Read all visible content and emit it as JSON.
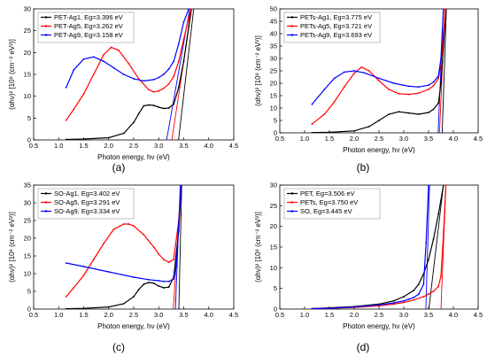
{
  "chart_data": [
    {
      "type": "line",
      "panel_label": "(a)",
      "xlabel": "Photon energy, hν (eV)",
      "ylabel": "(αhν)² [10⁸ (cm⁻² eV²)]",
      "xlim": [
        0.5,
        4.5
      ],
      "ylim": [
        0,
        30
      ],
      "xticks": [
        "0.5",
        "1.0",
        "1.5",
        "2.0",
        "2.5",
        "3.0",
        "3.5",
        "4.0",
        "4.5"
      ],
      "yticks": [
        "0",
        "5",
        "10",
        "15",
        "20",
        "25",
        "30"
      ],
      "legend_position": "top-left",
      "series": [
        {
          "name": "PET-Ag1, Eg=3.396 eV",
          "color": "#000000",
          "x": [
            1.15,
            1.5,
            2.0,
            2.3,
            2.5,
            2.6,
            2.7,
            2.8,
            2.9,
            3.0,
            3.1,
            3.2,
            3.3,
            3.4,
            3.5,
            3.6,
            3.65
          ],
          "y": [
            0.1,
            0.2,
            0.5,
            1.5,
            4.0,
            6.0,
            7.8,
            8.0,
            7.9,
            7.5,
            7.2,
            7.3,
            8.2,
            12,
            18,
            26,
            30
          ]
        },
        {
          "name": "PET-Ag5, Eg=3.262 eV",
          "color": "#ff0000",
          "x": [
            1.15,
            1.3,
            1.5,
            1.7,
            1.9,
            2.05,
            2.2,
            2.4,
            2.6,
            2.8,
            2.9,
            3.0,
            3.1,
            3.2,
            3.3,
            3.4,
            3.5,
            3.6,
            3.65
          ],
          "y": [
            4.5,
            7.0,
            10.5,
            15.0,
            19.5,
            21.2,
            20.5,
            17.5,
            14.0,
            11.5,
            11.0,
            11.2,
            11.8,
            12.8,
            14.5,
            18,
            23,
            28,
            30
          ]
        },
        {
          "name": "PET-Ag9, Eg=3.158 eV",
          "color": "#0000ff",
          "x": [
            1.15,
            1.3,
            1.5,
            1.7,
            1.9,
            2.1,
            2.3,
            2.5,
            2.7,
            2.9,
            3.0,
            3.1,
            3.2,
            3.3,
            3.4,
            3.5,
            3.6
          ],
          "y": [
            12.0,
            16.0,
            18.5,
            19.0,
            18.0,
            16.5,
            15.0,
            14.0,
            13.5,
            13.8,
            14.3,
            15.0,
            16.2,
            18.0,
            22,
            27,
            30
          ]
        }
      ],
      "fit_lines": [
        {
          "x": [
            3.396,
            3.7
          ],
          "y": [
            0,
            30
          ],
          "color": "#000000"
        },
        {
          "x": [
            3.262,
            3.66
          ],
          "y": [
            0,
            30
          ],
          "color": "#ff0000"
        },
        {
          "x": [
            3.158,
            3.62
          ],
          "y": [
            0,
            30
          ],
          "color": "#0000ff"
        }
      ]
    },
    {
      "type": "line",
      "panel_label": "(b)",
      "xlabel": "Photon energy, hν (eV)",
      "ylabel": "(αhν)² [10⁸ (cm⁻² eV²)]",
      "xlim": [
        0.5,
        4.5
      ],
      "ylim": [
        0,
        50
      ],
      "xticks": [
        "0.5",
        "1.0",
        "1.5",
        "2.0",
        "2.5",
        "3.0",
        "3.5",
        "4.0",
        "4.5"
      ],
      "yticks": [
        "0",
        "5",
        "10",
        "15",
        "20",
        "25",
        "30",
        "35",
        "40",
        "45",
        "50"
      ],
      "legend_position": "top-left",
      "series": [
        {
          "name": "PETs-Ag1, Eg=3.775 eV",
          "color": "#000000",
          "x": [
            1.15,
            1.5,
            2.0,
            2.3,
            2.5,
            2.7,
            2.9,
            3.1,
            3.3,
            3.5,
            3.6,
            3.7,
            3.75,
            3.8,
            3.85
          ],
          "y": [
            0.1,
            0.2,
            0.8,
            2.5,
            5.0,
            7.5,
            8.5,
            8.0,
            7.5,
            8.2,
            9.5,
            12,
            20,
            35,
            50
          ]
        },
        {
          "name": "PETs-Ag5, Eg=3.721 eV",
          "color": "#ff0000",
          "x": [
            1.15,
            1.4,
            1.6,
            1.8,
            2.0,
            2.15,
            2.3,
            2.5,
            2.7,
            2.9,
            3.1,
            3.3,
            3.5,
            3.6,
            3.7,
            3.75,
            3.8,
            3.85
          ],
          "y": [
            3.5,
            7.5,
            12.5,
            18.5,
            24.0,
            26.5,
            25.0,
            21.0,
            17.5,
            15.8,
            15.5,
            16.0,
            17.5,
            19,
            22,
            28,
            40,
            50
          ]
        },
        {
          "name": "PETs-Ag9, Eg=3.693 eV",
          "color": "#0000ff",
          "x": [
            1.15,
            1.4,
            1.6,
            1.8,
            2.0,
            2.2,
            2.5,
            2.8,
            3.1,
            3.3,
            3.5,
            3.6,
            3.7,
            3.75,
            3.8
          ],
          "y": [
            11.5,
            17.5,
            22.0,
            24.5,
            25.0,
            24.2,
            22.0,
            20.0,
            18.8,
            18.5,
            19.2,
            20.5,
            23,
            30,
            50
          ]
        }
      ],
      "fit_lines": [
        {
          "x": [
            3.775,
            3.86
          ],
          "y": [
            0,
            50
          ],
          "color": "#000000"
        },
        {
          "x": [
            3.721,
            3.83
          ],
          "y": [
            0,
            50
          ],
          "color": "#ff0000"
        },
        {
          "x": [
            3.693,
            3.8
          ],
          "y": [
            0,
            50
          ],
          "color": "#0000ff"
        }
      ]
    },
    {
      "type": "line",
      "panel_label": "(c)",
      "xlabel": "Photon energy, hν (eV)",
      "ylabel": "(αhν)² [10⁸ (cm⁻² eV²)]",
      "xlim": [
        0.5,
        4.5
      ],
      "ylim": [
        0,
        35
      ],
      "xticks": [
        "0.5",
        "1.0",
        "1.5",
        "2.0",
        "2.5",
        "3.0",
        "3.5",
        "4.0",
        "4.5"
      ],
      "yticks": [
        "0",
        "5",
        "10",
        "15",
        "20",
        "25",
        "30",
        "35"
      ],
      "legend_position": "top-left",
      "series": [
        {
          "name": "SO-Ag1, Eg=3.402 eV",
          "color": "#000000",
          "x": [
            1.15,
            1.5,
            2.0,
            2.3,
            2.5,
            2.6,
            2.7,
            2.8,
            2.9,
            3.0,
            3.1,
            3.2,
            3.3,
            3.4,
            3.45
          ],
          "y": [
            0.1,
            0.2,
            0.6,
            1.5,
            3.5,
            5.5,
            7.0,
            7.5,
            7.3,
            6.5,
            6.0,
            6.2,
            9,
            22,
            35
          ]
        },
        {
          "name": "SO-Ag5, Eg=3.291 eV",
          "color": "#ff0000",
          "x": [
            1.15,
            1.3,
            1.5,
            1.7,
            1.9,
            2.1,
            2.3,
            2.4,
            2.5,
            2.7,
            2.9,
            3.0,
            3.1,
            3.2,
            3.3,
            3.4,
            3.45
          ],
          "y": [
            3.5,
            6.0,
            9.5,
            14.0,
            18.5,
            22.5,
            24.0,
            24.0,
            23.5,
            21.0,
            17.5,
            15.5,
            14.0,
            13.2,
            14,
            25,
            35
          ]
        },
        {
          "name": "SO-Ag9, Eg=3.334 eV",
          "color": "#0000ff",
          "x": [
            1.15,
            1.5,
            2.0,
            2.5,
            2.8,
            3.0,
            3.1,
            3.2,
            3.3,
            3.35,
            3.4,
            3.45
          ],
          "y": [
            13.0,
            12.0,
            10.5,
            9.0,
            8.3,
            8.0,
            7.8,
            7.8,
            8.5,
            12,
            24,
            35
          ]
        }
      ],
      "fit_lines": [
        {
          "x": [
            3.402,
            3.46
          ],
          "y": [
            0,
            35
          ],
          "color": "#000000"
        },
        {
          "x": [
            3.291,
            3.45
          ],
          "y": [
            0,
            35
          ],
          "color": "#ff0000"
        },
        {
          "x": [
            3.334,
            3.43
          ],
          "y": [
            0,
            35
          ],
          "color": "#0000ff"
        }
      ]
    },
    {
      "type": "line",
      "panel_label": "(d)",
      "xlabel": "Photon energy, hν (eV)",
      "ylabel": "(αhν)² [10⁸ (cm⁻² eV²)]",
      "xlim": [
        0.5,
        4.5
      ],
      "ylim": [
        0,
        30
      ],
      "xticks": [
        "0.5",
        "1.0",
        "1.5",
        "2.0",
        "2.5",
        "3.0",
        "3.5",
        "4.0",
        "4.5"
      ],
      "yticks": [
        "0",
        "5",
        "10",
        "15",
        "20",
        "25",
        "30"
      ],
      "legend_position": "top-left",
      "series": [
        {
          "name": "PET,   Eg=3.506 eV",
          "color": "#000000",
          "x": [
            1.15,
            1.5,
            2.0,
            2.5,
            2.8,
            3.0,
            3.2,
            3.3,
            3.4,
            3.5,
            3.6,
            3.7,
            3.8
          ],
          "y": [
            0.1,
            0.3,
            0.6,
            1.2,
            2.0,
            3.0,
            4.5,
            6.0,
            8.5,
            12,
            17,
            23,
            30
          ]
        },
        {
          "name": "PETs, Eg=3.750 eV",
          "color": "#ff0000",
          "x": [
            1.15,
            1.5,
            2.0,
            2.5,
            2.8,
            3.0,
            3.2,
            3.4,
            3.5,
            3.6,
            3.7,
            3.75,
            3.8,
            3.85
          ],
          "y": [
            0.1,
            0.2,
            0.4,
            0.8,
            1.2,
            1.6,
            2.2,
            3.0,
            3.6,
            4.3,
            5.5,
            8,
            18,
            30
          ]
        },
        {
          "name": "SO, Eg=3.445 eV",
          "color": "#0000ff",
          "x": [
            1.15,
            1.5,
            2.0,
            2.5,
            2.8,
            3.0,
            3.1,
            3.2,
            3.3,
            3.4,
            3.45,
            3.5
          ],
          "y": [
            0.1,
            0.2,
            0.5,
            1.0,
            1.5,
            2.0,
            2.4,
            2.8,
            3.6,
            6,
            16,
            30
          ]
        }
      ],
      "fit_lines": [
        {
          "x": [
            3.506,
            3.8
          ],
          "y": [
            0,
            30
          ],
          "color": "#000000"
        },
        {
          "x": [
            3.75,
            3.85
          ],
          "y": [
            0,
            30
          ],
          "color": "#ff0000"
        },
        {
          "x": [
            3.445,
            3.52
          ],
          "y": [
            0,
            30
          ],
          "color": "#0000ff"
        }
      ]
    }
  ]
}
